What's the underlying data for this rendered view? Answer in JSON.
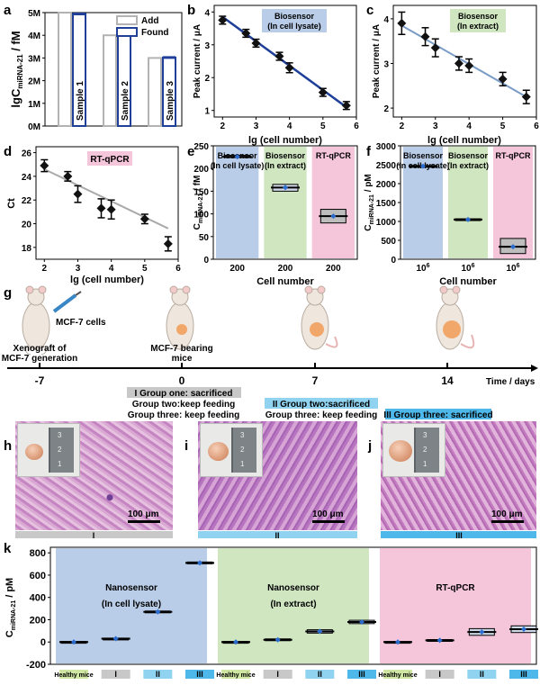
{
  "panel_letters": [
    "a",
    "b",
    "c",
    "d",
    "e",
    "f",
    "g",
    "h",
    "i",
    "j",
    "k"
  ],
  "colors": {
    "blue_dark": "#1f3f99",
    "blue_band": "#b9cde8",
    "green_band": "#cfe6c1",
    "pink_band": "#f5c6da",
    "grey": "#c8c8c8",
    "cyan": "#8fd3f0",
    "fit_line": "#7a9cc7"
  },
  "panel_a": {
    "ylabel_prefix": "lgC",
    "ylabel_sub": "miRNA-21",
    "ylabel_suffix": " / fM",
    "legend": [
      "Add",
      "Found"
    ],
    "chart_data": {
      "type": "bar",
      "categories": [
        "Sample 1",
        "Sample 2",
        "Sample 3"
      ],
      "series": [
        {
          "name": "Add",
          "values": [
            5,
            4,
            3
          ]
        },
        {
          "name": "Found",
          "values": [
            4.94,
            4.1,
            3.02
          ]
        }
      ],
      "ylim": [
        0,
        5
      ],
      "yticks": [
        "0M",
        "1M",
        "2M",
        "3M",
        "4M",
        "5M"
      ]
    }
  },
  "panel_b": {
    "tag": "Biosensor\n(In cell lysate)",
    "xlabel": "lg (cell number)",
    "ylabel": "Peak current / μA",
    "chart_data": {
      "type": "scatter",
      "x": [
        2.0,
        2.7,
        3.0,
        3.7,
        4.0,
        5.0,
        5.7
      ],
      "y": [
        3.75,
        3.35,
        3.05,
        2.65,
        2.3,
        1.55,
        1.15
      ],
      "err": [
        0.12,
        0.12,
        0.12,
        0.12,
        0.15,
        0.12,
        0.12
      ],
      "fit": [
        [
          2.0,
          3.85
        ],
        [
          5.7,
          1.1
        ]
      ],
      "xlim": [
        1.75,
        6.0
      ],
      "ylim": [
        0.8,
        4.2
      ],
      "xticks": [
        2,
        3,
        4,
        5,
        6
      ],
      "yticks": [
        1,
        2,
        3,
        4
      ]
    }
  },
  "panel_c": {
    "tag": "Biosensor\n(In extract)",
    "xlabel": "lg (cell number)",
    "ylabel": "Peak current / μA",
    "chart_data": {
      "type": "scatter",
      "x": [
        2.0,
        2.7,
        3.0,
        3.7,
        4.0,
        5.0,
        5.7
      ],
      "y": [
        3.9,
        3.6,
        3.35,
        3.0,
        2.95,
        2.65,
        2.25
      ],
      "err": [
        0.25,
        0.2,
        0.2,
        0.15,
        0.15,
        0.15,
        0.15
      ],
      "fit": [
        [
          2.0,
          3.85
        ],
        [
          5.7,
          2.25
        ]
      ],
      "xlim": [
        1.75,
        6.0
      ],
      "ylim": [
        1.8,
        4.3
      ],
      "xticks": [
        2,
        3,
        4,
        5,
        6
      ],
      "yticks": [
        2,
        3,
        4
      ]
    }
  },
  "panel_d": {
    "tag": "RT-qPCR",
    "xlabel": "lg (cell number)",
    "ylabel": "Ct",
    "chart_data": {
      "type": "scatter",
      "x": [
        2.0,
        2.7,
        3.0,
        3.7,
        4.0,
        5.0,
        5.7
      ],
      "y": [
        24.9,
        24.0,
        22.5,
        21.3,
        21.2,
        20.4,
        18.3
      ],
      "err": [
        0.5,
        0.4,
        0.7,
        0.8,
        0.8,
        0.4,
        0.6
      ],
      "fit": [
        [
          2.0,
          24.6
        ],
        [
          5.7,
          19.6
        ]
      ],
      "xlim": [
        1.75,
        6.0
      ],
      "ylim": [
        17,
        26.5
      ],
      "xticks": [
        2,
        3,
        4,
        5,
        6
      ],
      "yticks": [
        18,
        20,
        22,
        24,
        26
      ]
    }
  },
  "panel_e": {
    "ylabel_prefix": "C",
    "ylabel_sub": "miRNA-21",
    "ylabel_suffix": " / fM",
    "xlabel": "Cell number",
    "bands": [
      "Biosensor\n(In cell lysate)",
      "Biosensor\n(In extract)",
      "RT-qPCR"
    ],
    "chart_data": {
      "type": "table",
      "categories": [
        "200",
        "200",
        "200"
      ],
      "values": [
        226,
        158,
        95
      ],
      "box": [
        [
          224,
          229
        ],
        [
          150,
          165
        ],
        [
          80,
          110
        ]
      ],
      "ylim": [
        0,
        250
      ],
      "yticks": [
        0,
        50,
        100,
        150,
        200,
        250
      ]
    }
  },
  "panel_f": {
    "ylabel_prefix": "C",
    "ylabel_sub": "miRNA-21",
    "ylabel_suffix": " / pM",
    "xlabel": "Cell number",
    "bands": [
      "Biosensor\n(In cell lysate)",
      "Biosensor\n(In extract)",
      "RT-qPCR"
    ],
    "cat_base": "10",
    "cat_exp": "6",
    "chart_data": {
      "type": "table",
      "categories": [
        "10⁶",
        "10⁶",
        "10⁶"
      ],
      "values": [
        2460,
        1050,
        330
      ],
      "box": [
        [
          2440,
          2480
        ],
        [
          1030,
          1070
        ],
        [
          150,
          550
        ]
      ],
      "ylim": [
        0,
        3000
      ],
      "yticks": [
        0,
        500,
        1000,
        1500,
        2000,
        2500,
        3000
      ]
    }
  },
  "panel_g": {
    "time_label": "Time / days",
    "days": [
      "-7",
      "0",
      "7",
      "14"
    ],
    "inject_label": "MCF-7 cells",
    "stage_labels": [
      "Xenograft of\nMCF-7 generation",
      "MCF-7 bearing\nmice"
    ],
    "group_notes": [
      [
        "I Group one: sacrificed",
        "Group two:keep feeding",
        "Group three: keep feeding"
      ],
      [
        "II Group two:sacrificed",
        "Group three: keep feeding"
      ],
      [
        "III Group three: sacrificed"
      ]
    ]
  },
  "histology": {
    "scale_label": "100 μm",
    "ruler_marks": [
      "3",
      "2",
      "1"
    ],
    "groups": [
      "I",
      "II",
      "III"
    ]
  },
  "panel_k": {
    "ylabel_prefix": "C",
    "ylabel_sub": "miRNA-21",
    "ylabel_suffix": " / pM",
    "bands": [
      "Nanosensor\n(In cell lysate)",
      "Nanosensor\n(In extract)",
      "RT-qPCR"
    ],
    "categories": [
      "Healthy mice",
      "I",
      "II",
      "III"
    ],
    "chart_data": {
      "type": "table",
      "groups": [
        {
          "name": "Nanosensor (In cell lysate)",
          "values": [
            0,
            30,
            270,
            710
          ],
          "box": [
            [
              -5,
              5
            ],
            [
              25,
              35
            ],
            [
              262,
              278
            ],
            [
              702,
              718
            ]
          ]
        },
        {
          "name": "Nanosensor (In extract)",
          "values": [
            0,
            20,
            95,
            180
          ],
          "box": [
            [
              -5,
              5
            ],
            [
              12,
              28
            ],
            [
              80,
              110
            ],
            [
              165,
              195
            ]
          ]
        },
        {
          "name": "RT-qPCR",
          "values": [
            0,
            15,
            90,
            115
          ],
          "box": [
            [
              -5,
              5
            ],
            [
              8,
              22
            ],
            [
              60,
              120
            ],
            [
              85,
              145
            ]
          ]
        }
      ],
      "ylim": [
        -200,
        850
      ],
      "yticks": [
        -200,
        0,
        200,
        400,
        600,
        800
      ]
    }
  }
}
